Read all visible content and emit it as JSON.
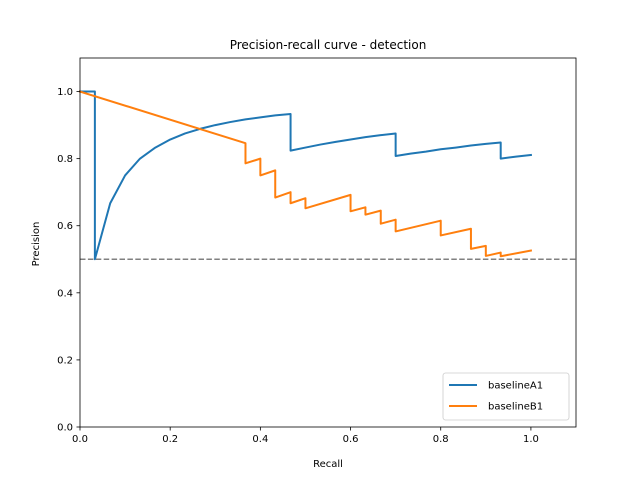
{
  "chart_data": {
    "type": "line",
    "title": "Precision-recall curve - detection",
    "xlabel": "Recall",
    "ylabel": "Precision",
    "xlim": [
      0.0,
      1.1
    ],
    "ylim": [
      0.0,
      1.1
    ],
    "xticks": [
      0.0,
      0.2,
      0.4,
      0.6,
      0.8,
      1.0
    ],
    "yticks": [
      0.0,
      0.2,
      0.4,
      0.6,
      0.8,
      1.0
    ],
    "xtick_labels": [
      "0.0",
      "0.2",
      "0.4",
      "0.6",
      "0.8",
      "1.0"
    ],
    "ytick_labels": [
      "0.0",
      "0.2",
      "0.4",
      "0.6",
      "0.8",
      "1.0"
    ],
    "grid": false,
    "legend_position": "lower-right",
    "reference_line": {
      "y": 0.5,
      "style": "dashed",
      "color": "#808080"
    },
    "series": [
      {
        "name": "baselineA1",
        "color": "#1f77b4",
        "points": [
          [
            0.0,
            1.0
          ],
          [
            0.033,
            1.0
          ],
          [
            0.033,
            0.5
          ],
          [
            0.067,
            0.667
          ],
          [
            0.1,
            0.75
          ],
          [
            0.133,
            0.8
          ],
          [
            0.167,
            0.833
          ],
          [
            0.2,
            0.857
          ],
          [
            0.233,
            0.875
          ],
          [
            0.267,
            0.889
          ],
          [
            0.3,
            0.9
          ],
          [
            0.333,
            0.909
          ],
          [
            0.367,
            0.917
          ],
          [
            0.4,
            0.923
          ],
          [
            0.433,
            0.929
          ],
          [
            0.467,
            0.933
          ],
          [
            0.467,
            0.824
          ],
          [
            0.5,
            0.833
          ],
          [
            0.533,
            0.842
          ],
          [
            0.567,
            0.85
          ],
          [
            0.6,
            0.857
          ],
          [
            0.633,
            0.864
          ],
          [
            0.667,
            0.87
          ],
          [
            0.7,
            0.875
          ],
          [
            0.7,
            0.808
          ],
          [
            0.733,
            0.815
          ],
          [
            0.767,
            0.821
          ],
          [
            0.8,
            0.828
          ],
          [
            0.833,
            0.833
          ],
          [
            0.867,
            0.839
          ],
          [
            0.9,
            0.844
          ],
          [
            0.933,
            0.848
          ],
          [
            0.933,
            0.8
          ],
          [
            0.967,
            0.806
          ],
          [
            1.0,
            0.811
          ]
        ]
      },
      {
        "name": "baselineB1",
        "color": "#ff7f0e",
        "points": [
          [
            0.0,
            1.0
          ],
          [
            0.367,
            0.846
          ],
          [
            0.367,
            0.786
          ],
          [
            0.4,
            0.8
          ],
          [
            0.4,
            0.75
          ],
          [
            0.433,
            0.765
          ],
          [
            0.433,
            0.684
          ],
          [
            0.467,
            0.7
          ],
          [
            0.467,
            0.667
          ],
          [
            0.5,
            0.682
          ],
          [
            0.5,
            0.652
          ],
          [
            0.6,
            0.692
          ],
          [
            0.6,
            0.643
          ],
          [
            0.633,
            0.655
          ],
          [
            0.633,
            0.633
          ],
          [
            0.667,
            0.645
          ],
          [
            0.667,
            0.606
          ],
          [
            0.7,
            0.618
          ],
          [
            0.7,
            0.583
          ],
          [
            0.8,
            0.615
          ],
          [
            0.8,
            0.571
          ],
          [
            0.867,
            0.591
          ],
          [
            0.867,
            0.531
          ],
          [
            0.9,
            0.54
          ],
          [
            0.9,
            0.51
          ],
          [
            0.933,
            0.52
          ],
          [
            0.933,
            0.509
          ],
          [
            1.0,
            0.526
          ]
        ]
      }
    ]
  }
}
